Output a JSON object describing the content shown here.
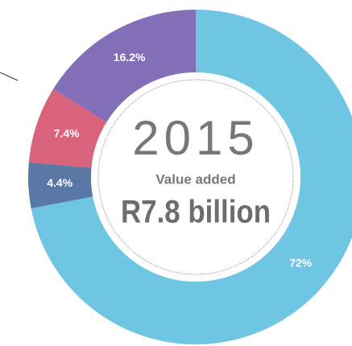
{
  "chart_data": {
    "type": "donut",
    "title": "2015",
    "subtitle": "Value added",
    "annotation": "R7.8 billion",
    "values": [
      72,
      4.4,
      7.4,
      16.2
    ],
    "value_labels": [
      "72%",
      "4.4%",
      "7.4%",
      "16.2%"
    ],
    "colors": [
      "#6ec6e3",
      "#5a78a6",
      "#d8637a",
      "#836fb7"
    ]
  }
}
